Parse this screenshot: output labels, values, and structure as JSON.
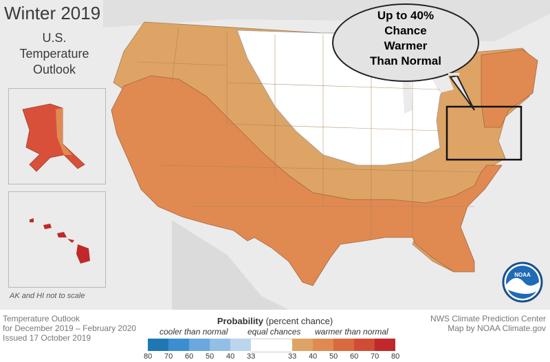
{
  "title": "Winter 2019",
  "subtitle_lines": [
    "U.S.",
    "Temperature",
    "Outlook"
  ],
  "note": "AK and HI not to scale",
  "callout_lines": [
    "Up to 40%",
    "Chance",
    "Warmer",
    "Than Normal"
  ],
  "logo_text": "NOAA",
  "footer": {
    "left_lines": [
      "Temperature Outlook",
      "for December 2019 – February 2020",
      "Issued 17 October 2019"
    ],
    "right_lines": [
      "NWS Climate Prediction Center",
      "Map by NOAA Climate.gov"
    ],
    "prob_title": "Probability",
    "prob_subtitle": "(percent chance)",
    "cooler": "cooler than normal",
    "equal": "equal chances",
    "warmer": "warmer than normal",
    "cool_ticks": [
      "80",
      "70",
      "60",
      "50",
      "40",
      "33"
    ],
    "warm_ticks": [
      "33",
      "40",
      "50",
      "60",
      "70",
      "80"
    ]
  },
  "colors": {
    "cool": [
      "#1f78b4",
      "#3b8fd0",
      "#6aa8dd",
      "#93bfe6",
      "#bcd5ee"
    ],
    "equal": "#ffffff",
    "warm": [
      "#dda466",
      "#e08a52",
      "#d96a3e",
      "#cf4c35",
      "#c0282a"
    ],
    "land_40": "#dda466",
    "land_50": "#e08a52",
    "ak_hi": "#d9503a",
    "water": "#ebebeb"
  }
}
